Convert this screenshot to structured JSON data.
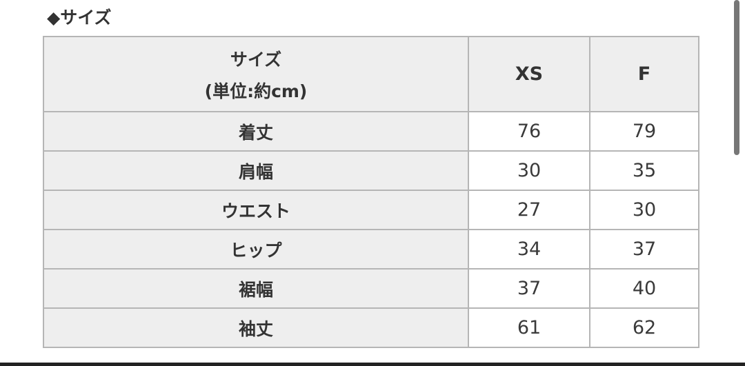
{
  "title": "◆サイズ",
  "table": {
    "header": {
      "label_line1": "サイズ",
      "label_line2": "(単位:約cm)",
      "columns": [
        "XS",
        "F"
      ]
    },
    "rows": [
      {
        "label": "着丈",
        "values": [
          "76",
          "79"
        ]
      },
      {
        "label": "肩幅",
        "values": [
          "30",
          "35"
        ]
      },
      {
        "label": "ウエスト",
        "values": [
          "27",
          "30"
        ]
      },
      {
        "label": "ヒップ",
        "values": [
          "34",
          "37"
        ]
      },
      {
        "label": "裾幅",
        "values": [
          "37",
          "40"
        ]
      },
      {
        "label": "袖丈",
        "values": [
          "61",
          "62"
        ]
      }
    ]
  }
}
